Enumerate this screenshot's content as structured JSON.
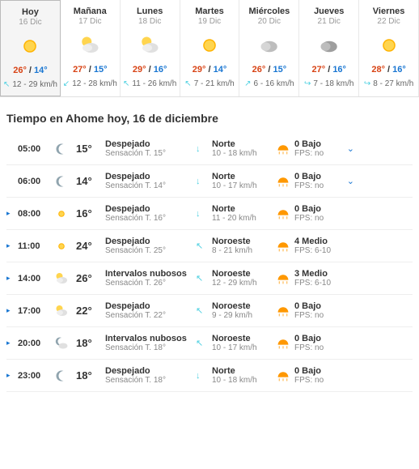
{
  "days": [
    {
      "name": "Hoy",
      "date": "16 Dic",
      "icon": "sun",
      "hi": "26°",
      "lo": "14°",
      "wind": "12 - 29 km/h",
      "arrow": "↖",
      "sel": true
    },
    {
      "name": "Mañana",
      "date": "17 Dic",
      "icon": "partly",
      "hi": "27°",
      "lo": "15°",
      "wind": "12 - 28 km/h",
      "arrow": "↙"
    },
    {
      "name": "Lunes",
      "date": "18 Dic",
      "icon": "partly",
      "hi": "29°",
      "lo": "16°",
      "wind": "11 - 26 km/h",
      "arrow": "↖"
    },
    {
      "name": "Martes",
      "date": "19 Dic",
      "icon": "sun",
      "hi": "29°",
      "lo": "14°",
      "wind": "7 - 21 km/h",
      "arrow": "↖"
    },
    {
      "name": "Miércoles",
      "date": "20 Dic",
      "icon": "cloud",
      "hi": "26°",
      "lo": "15°",
      "wind": "6 - 16 km/h",
      "arrow": "↗"
    },
    {
      "name": "Jueves",
      "date": "21 Dic",
      "icon": "cloud-dark",
      "hi": "27°",
      "lo": "16°",
      "wind": "7 - 18 km/h",
      "arrow": "↪"
    },
    {
      "name": "Viernes",
      "date": "22 Dic",
      "icon": "sun",
      "hi": "28°",
      "lo": "16°",
      "wind": "8 - 27 km/h",
      "arrow": "↪"
    }
  ],
  "title": "Tiempo en Ahome hoy, 16 de diciembre",
  "hours": [
    {
      "time": "05:00",
      "icon": "moon",
      "temp": "15°",
      "cond": "Despejado",
      "feel": "Sensación T. 15°",
      "wdir": "Norte",
      "wsp": "10 - 18 km/h",
      "wicon": "↓",
      "uv": "0 Bajo",
      "fps": "FPS: no",
      "chev": "⌄",
      "exp": ""
    },
    {
      "time": "06:00",
      "icon": "moon",
      "temp": "14°",
      "cond": "Despejado",
      "feel": "Sensación T. 14°",
      "wdir": "Norte",
      "wsp": "10 - 17 km/h",
      "wicon": "↓",
      "uv": "0 Bajo",
      "fps": "FPS: no",
      "chev": "⌄",
      "exp": ""
    },
    {
      "time": "08:00",
      "icon": "sun-s",
      "temp": "16°",
      "cond": "Despejado",
      "feel": "Sensación T. 16°",
      "wdir": "Norte",
      "wsp": "11 - 20 km/h",
      "wicon": "↓",
      "uv": "0 Bajo",
      "fps": "FPS: no",
      "chev": "",
      "exp": "▸"
    },
    {
      "time": "11:00",
      "icon": "sun-s",
      "temp": "24°",
      "cond": "Despejado",
      "feel": "Sensación T. 25°",
      "wdir": "Noroeste",
      "wsp": "8 - 21 km/h",
      "wicon": "↖",
      "uv": "4 Medio",
      "fps": "FPS: 6-10",
      "chev": "",
      "exp": "▸"
    },
    {
      "time": "14:00",
      "icon": "partly-s",
      "temp": "26°",
      "cond": "Intervalos nubosos",
      "feel": "Sensación T. 26°",
      "wdir": "Noroeste",
      "wsp": "12 - 29 km/h",
      "wicon": "↖",
      "uv": "3 Medio",
      "fps": "FPS: 6-10",
      "chev": "",
      "exp": "▸"
    },
    {
      "time": "17:00",
      "icon": "partly-s",
      "temp": "22°",
      "cond": "Despejado",
      "feel": "Sensación T. 22°",
      "wdir": "Noroeste",
      "wsp": "9 - 29 km/h",
      "wicon": "↖",
      "uv": "0 Bajo",
      "fps": "FPS: no",
      "chev": "",
      "exp": "▸"
    },
    {
      "time": "20:00",
      "icon": "moon-cloud",
      "temp": "18°",
      "cond": "Intervalos nubosos",
      "feel": "Sensación T. 18°",
      "wdir": "Noroeste",
      "wsp": "10 - 17 km/h",
      "wicon": "↖",
      "uv": "0 Bajo",
      "fps": "FPS: no",
      "chev": "",
      "exp": "▸"
    },
    {
      "time": "23:00",
      "icon": "moon",
      "temp": "18°",
      "cond": "Despejado",
      "feel": "Sensación T. 18°",
      "wdir": "Norte",
      "wsp": "10 - 18 km/h",
      "wicon": "↓",
      "uv": "0 Bajo",
      "fps": "FPS: no",
      "chev": "",
      "exp": "▸"
    }
  ]
}
